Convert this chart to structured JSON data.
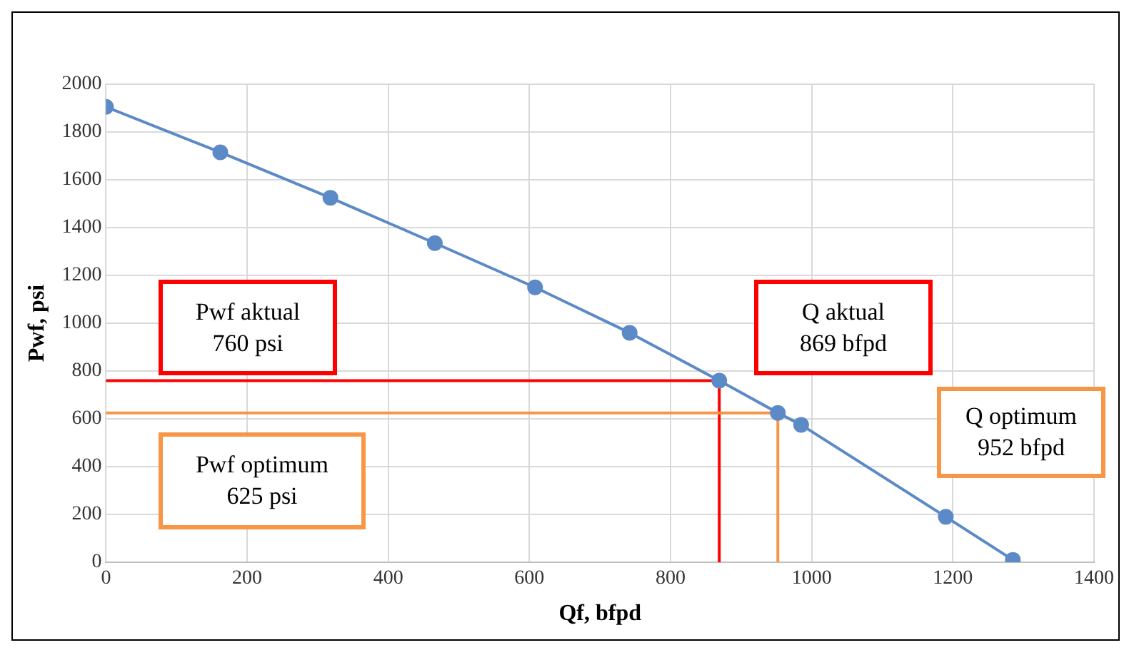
{
  "chart_data": {
    "type": "line",
    "xlabel": "Qf, bfpd",
    "ylabel": "Pwf, psi",
    "series": [
      {
        "color": "#5b8ac6",
        "x": [
          0,
          162,
          318,
          466,
          608,
          742,
          869,
          952,
          985,
          1190,
          1285
        ],
        "values": [
          1905,
          1715,
          1525,
          1335,
          1150,
          960,
          760,
          625,
          575,
          190,
          10
        ]
      }
    ],
    "xlim": [
      0,
      1400
    ],
    "xticks": [
      0,
      200,
      400,
      600,
      800,
      1000,
      1200,
      1400
    ],
    "ylim": [
      0,
      2000
    ],
    "yticks": [
      0,
      200,
      400,
      600,
      800,
      1000,
      1200,
      1400,
      1600,
      1800,
      2000
    ],
    "grid": true,
    "legend": false,
    "marker": "circle",
    "line_style": "solid",
    "ref_lines": [
      {
        "axis": "y",
        "value": 760,
        "color": "#ff0000"
      },
      {
        "axis": "x",
        "value": 869,
        "color": "#ff0000"
      },
      {
        "axis": "y",
        "value": 625,
        "color": "#f79646"
      },
      {
        "axis": "x",
        "value": 952,
        "color": "#f79646"
      }
    ],
    "annotations": [
      "Pwf aktual\n760 psi",
      "Q aktual\n869 bfpd",
      "Pwf optimum\n625 psi",
      "Q optimum\n952 bfpd"
    ]
  }
}
